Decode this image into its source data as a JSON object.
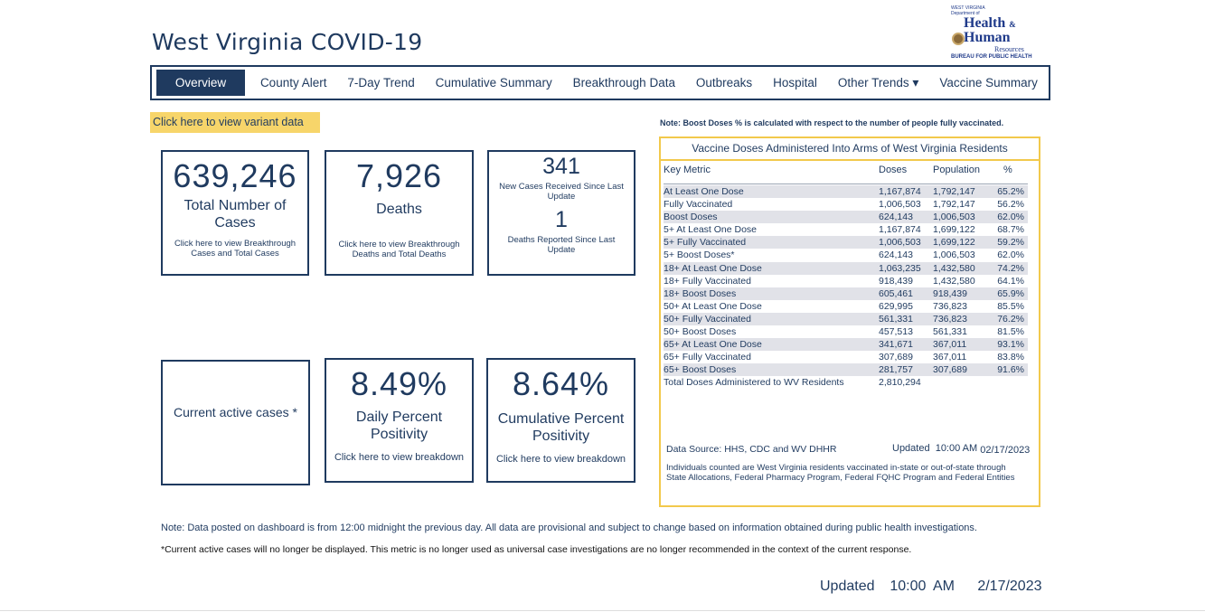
{
  "header": {
    "title": "West Virginia COVID-19",
    "logo": {
      "line1": "WEST VIRGINIA",
      "line2": "Department of",
      "line3": "Health",
      "amp": "&",
      "line4": "Human",
      "line5": "Resources",
      "line6": "BUREAU FOR PUBLIC HEALTH"
    }
  },
  "nav": {
    "tabs": [
      {
        "label": "Overview",
        "active": true
      },
      {
        "label": "County Alert"
      },
      {
        "label": "7-Day Trend"
      },
      {
        "label": "Cumulative Summary"
      },
      {
        "label": "Breakthrough Data"
      },
      {
        "label": "Outbreaks"
      },
      {
        "label": "Hospital"
      },
      {
        "label": "Other Trends",
        "dropdown": "▾"
      },
      {
        "label": "Vaccine Summary"
      }
    ]
  },
  "variant_link": "Click here to view variant data",
  "cards": {
    "cases": {
      "value": "639,246",
      "label": "Total Number of Cases",
      "link": "Click here to view Breakthrough Cases and Total Cases"
    },
    "deaths": {
      "value": "7,926",
      "label": "Deaths",
      "link": "Click here to view Breakthrough Deaths and Total Deaths"
    },
    "new": {
      "cases_value": "341",
      "cases_label": "New Cases Received Since Last Update",
      "deaths_value": "1",
      "deaths_label": "Deaths Reported Since Last Update"
    },
    "active": {
      "label": "Current active cases *"
    },
    "daily": {
      "value": "8.49%",
      "label": "Daily Percent Positivity",
      "link": "Click here to view breakdown"
    },
    "cumulative": {
      "value": "8.64%",
      "label": "Cumulative Percent Positivity",
      "link": "Click here to view breakdown"
    }
  },
  "vaccine": {
    "note": "Note: Boost Doses % is calculated with respect to the number of people fully vaccinated.",
    "title": "Vaccine Doses Administered Into Arms of West Virginia Residents",
    "headers": [
      "Key Metric",
      "Doses",
      "Population",
      "%"
    ],
    "rows": [
      [
        "At Least One Dose",
        "1,167,874",
        "1,792,147",
        "65.2%"
      ],
      [
        "Fully Vaccinated",
        "1,006,503",
        "1,792,147",
        "56.2%"
      ],
      [
        "Boost Doses",
        "624,143",
        "1,006,503",
        "62.0%"
      ],
      [
        "5+ At Least One Dose",
        "1,167,874",
        "1,699,122",
        "68.7%"
      ],
      [
        "5+ Fully Vaccinated",
        "1,006,503",
        "1,699,122",
        "59.2%"
      ],
      [
        "5+ Boost Doses*",
        "624,143",
        "1,006,503",
        "62.0%"
      ],
      [
        "18+ At Least One Dose",
        "1,063,235",
        "1,432,580",
        "74.2%"
      ],
      [
        "18+ Fully Vaccinated",
        "918,439",
        "1,432,580",
        "64.1%"
      ],
      [
        "18+ Boost Doses",
        "605,461",
        "918,439",
        "65.9%"
      ],
      [
        "50+ At Least One Dose",
        "629,995",
        "736,823",
        "85.5%"
      ],
      [
        "50+ Fully Vaccinated",
        "561,331",
        "736,823",
        "76.2%"
      ],
      [
        "50+ Boost Doses",
        "457,513",
        "561,331",
        "81.5%"
      ],
      [
        "65+ At Least One Dose",
        "341,671",
        "367,011",
        "93.1%"
      ],
      [
        "65+ Fully Vaccinated",
        "307,689",
        "367,011",
        "83.8%"
      ],
      [
        "65+ Boost Doses",
        "281,757",
        "307,689",
        "91.6%"
      ]
    ],
    "total": {
      "label": "Total Doses Administered to WV Residents",
      "doses": "2,810,294"
    },
    "source": "Data Source: HHS, CDC and WV DHHR",
    "updated_label": "Updated  10:00 AM",
    "updated_date": "02/17/2023",
    "individuals": "Individuals counted are West Virginia residents vaccinated in-state or out-of-state through State Allocations, Federal Pharmacy Program, Federal FQHC Program and Federal Entities"
  },
  "notes": {
    "note1": "Note: Data posted on dashboard is from 12:00 midnight the previous day. All data are provisional and subject to change based on information obtained during public health investigations.",
    "note2": "*Current active cases will no longer be displayed. This metric is no longer used as universal case investigations are no longer recommended in the context of the current response."
  },
  "footer": {
    "updated": "Updated  10:00 AM   2/17/2023"
  },
  "colors": {
    "navy": "#1f3a5f",
    "gold": "#f2c94c",
    "variant_bg": "#f7d56a"
  }
}
